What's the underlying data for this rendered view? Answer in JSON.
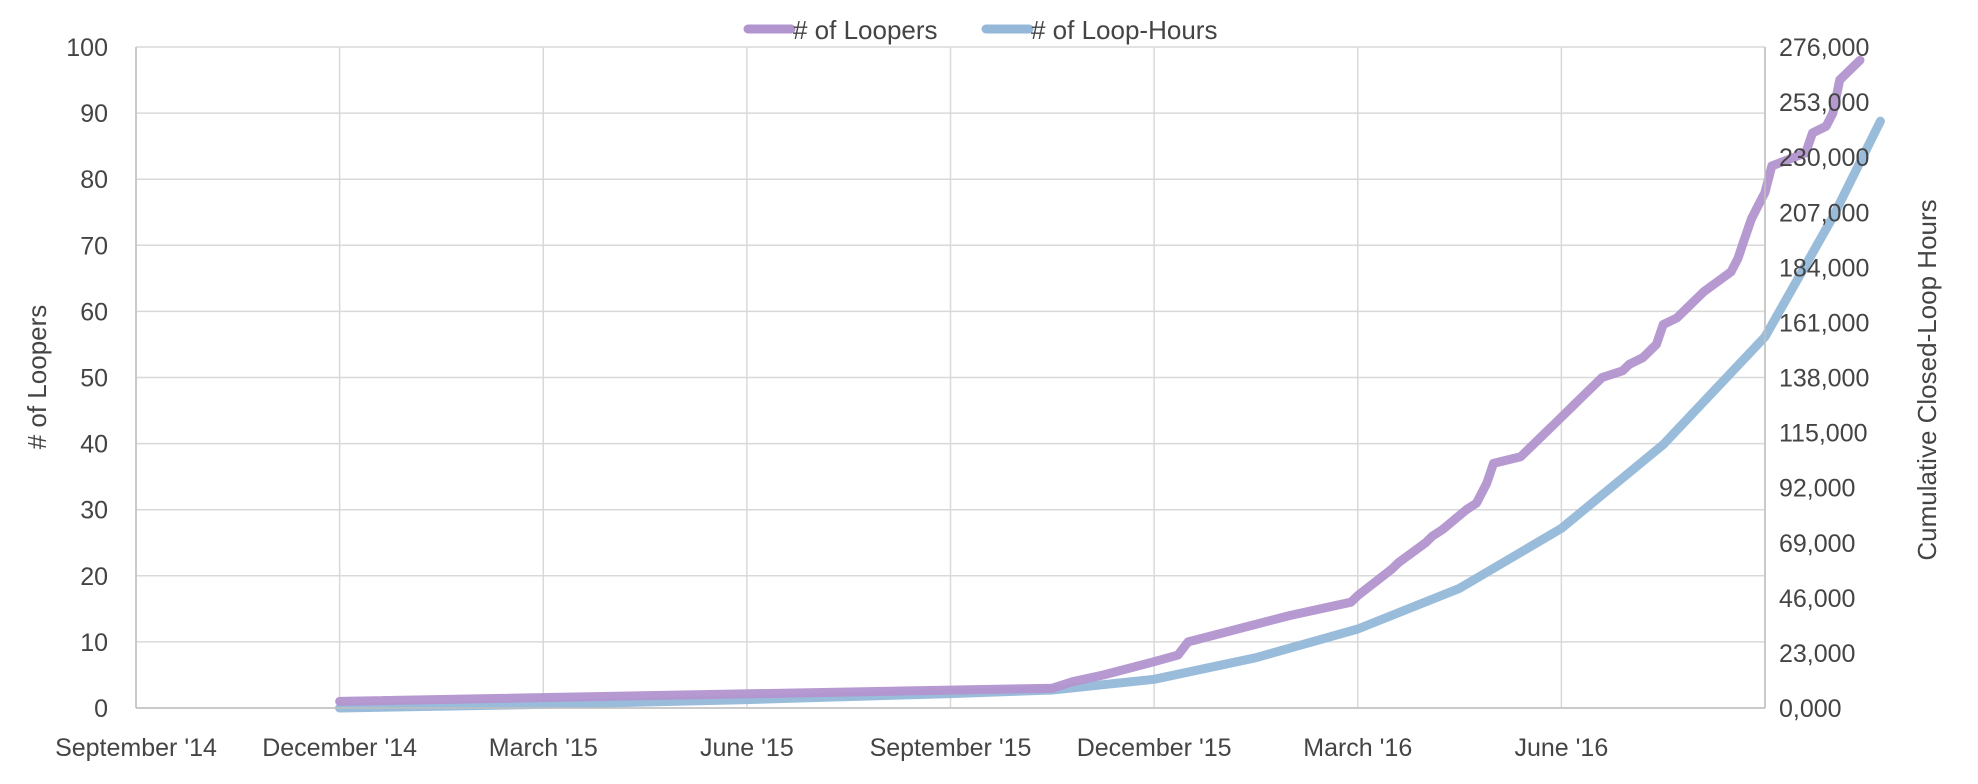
{
  "chart_data": {
    "type": "line",
    "legend_position": "top",
    "grid": true,
    "x_axis": {
      "ticks": [
        "September '14",
        "December '14",
        "March '15",
        "June '15",
        "September '15",
        "December '15",
        "March '16",
        "June '16"
      ],
      "range": [
        "2014-09",
        "2016-09"
      ]
    },
    "y_left": {
      "label": "# of Loopers",
      "range": [
        0,
        100
      ],
      "ticks": [
        "0",
        "10",
        "20",
        "30",
        "40",
        "50",
        "60",
        "70",
        "80",
        "90",
        "100"
      ]
    },
    "y_right": {
      "label": "Cumulative Closed-Loop Hours",
      "range": [
        0,
        276000
      ],
      "ticks": [
        "0,000",
        "23,000",
        "46,000",
        "69,000",
        "92,000",
        "115,000",
        "138,000",
        "161,000",
        "184,000",
        "207,000",
        "230,000",
        "253,000",
        "276,000"
      ]
    },
    "series": [
      {
        "name": "# of Loopers",
        "axis": "left",
        "color": "#b294cf",
        "x": [
          3.0,
          13.5,
          13.8,
          14.25,
          15.0,
          15.35,
          15.5,
          17.0,
          17.9,
          18.0,
          18.5,
          18.6,
          19.0,
          19.1,
          19.25,
          19.6,
          19.75,
          19.9,
          20.0,
          20.4,
          20.5,
          20.7,
          20.9,
          21.0,
          21.2,
          21.3,
          21.6,
          21.9,
          22.0,
          22.2,
          22.4,
          22.5,
          22.7,
          22.8,
          23.0,
          23.1,
          23.5,
          23.6,
          23.7,
          23.8,
          23.9,
          24.0,
          24.1,
          24.6,
          24.7,
          24.9,
          25.0,
          25.1,
          25.4
        ],
        "values": [
          1,
          3,
          4,
          5,
          7,
          8,
          10,
          14,
          16,
          17,
          21,
          22,
          25,
          26,
          27,
          30,
          31,
          34,
          37,
          38,
          39,
          41,
          43,
          44,
          46,
          47,
          50,
          51,
          52,
          53,
          55,
          58,
          59,
          60,
          62,
          63,
          66,
          68,
          71,
          74,
          76,
          78,
          82,
          84,
          87,
          88,
          90,
          95,
          98
        ]
      },
      {
        "name": "# of Loop-Hours",
        "axis": "right",
        "color": "#95b8d9",
        "x": [
          3.0,
          6.0,
          9.0,
          12.0,
          13.5,
          15.0,
          16.5,
          18.0,
          19.5,
          21.0,
          22.5,
          24.0,
          25.0,
          25.7
        ],
        "values": [
          0,
          1500,
          3500,
          6000,
          7500,
          12000,
          21000,
          33000,
          50000,
          75000,
          110000,
          155000,
          205000,
          245000
        ]
      }
    ]
  }
}
